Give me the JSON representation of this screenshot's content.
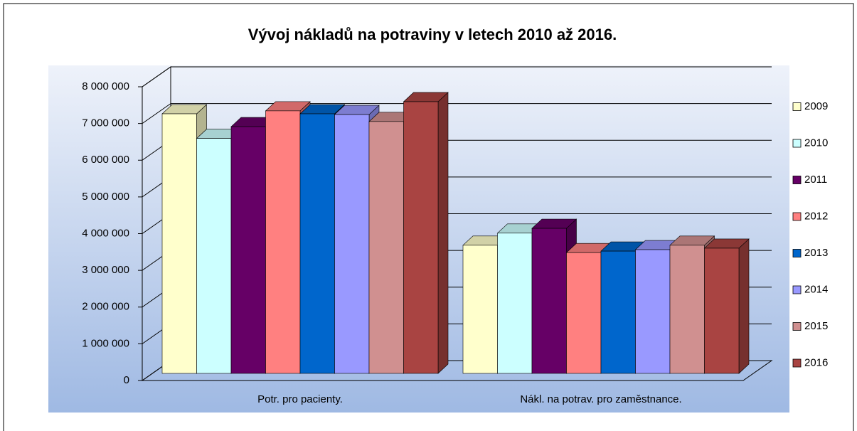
{
  "chart_data": {
    "type": "bar3d",
    "title": "Vývoj nákladů na potraviny v letech 2010 až 2016.",
    "categories": [
      "Potr. pro pacienty.",
      "Nákl. na potrav. pro zaměstnance."
    ],
    "series": [
      {
        "name": "2009",
        "color": "#ffffcc",
        "values": [
          7070000,
          3490000
        ]
      },
      {
        "name": "2010",
        "color": "#ccffff",
        "values": [
          6400000,
          3820000
        ]
      },
      {
        "name": "2011",
        "color": "#660066",
        "values": [
          6720000,
          3950000
        ]
      },
      {
        "name": "2012",
        "color": "#ff8080",
        "values": [
          7150000,
          3290000
        ]
      },
      {
        "name": "2013",
        "color": "#0066cc",
        "values": [
          7070000,
          3330000
        ]
      },
      {
        "name": "2014",
        "color": "#9999ff",
        "values": [
          7050000,
          3370000
        ]
      },
      {
        "name": "2015",
        "color": "#d09090",
        "values": [
          6860000,
          3490000
        ]
      },
      {
        "name": "2016",
        "color": "#a94442",
        "values": [
          7400000,
          3410000
        ]
      }
    ],
    "ylim": [
      0,
      8000000
    ],
    "yticks": [
      0,
      {
        "value": 1000000,
        "label": "1 000 000"
      },
      {
        "value": 2000000,
        "label": "2 000 000"
      },
      {
        "value": 3000000,
        "label": "3 000 000"
      },
      {
        "value": 4000000,
        "label": "4 000 000"
      },
      {
        "value": 5000000,
        "label": "5 000 000"
      },
      {
        "value": 6000000,
        "label": "6 000 000"
      },
      {
        "value": 7000000,
        "label": "7 000 000"
      },
      {
        "value": 8000000,
        "label": "8 000 000"
      }
    ],
    "grid": true,
    "legend": "right"
  }
}
